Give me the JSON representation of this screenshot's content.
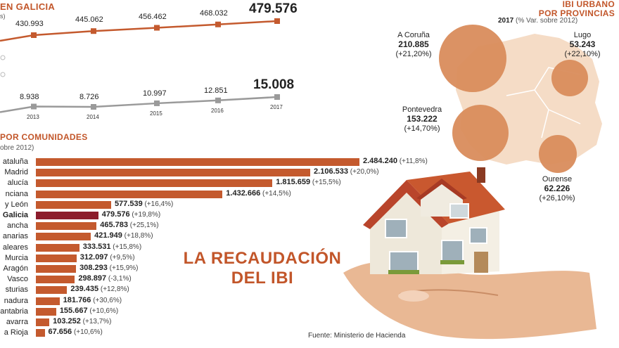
{
  "galicia_header": "EN GALICIA",
  "galicia_sub": "s)",
  "line_chart": {
    "years": [
      "2013",
      "2014",
      "2015",
      "2016",
      "2017"
    ],
    "upper": {
      "labels": [
        "430.993",
        "445.062",
        "456.462",
        "468.032",
        "479.576"
      ],
      "values": [
        430993,
        445062,
        456462,
        468032,
        479576
      ]
    },
    "lower": {
      "labels": [
        "8.938",
        "8.726",
        "10.997",
        "12.851",
        "15.008"
      ],
      "values": [
        8938,
        8726,
        10997,
        12851,
        15008
      ]
    },
    "upper_color": "#c45a2e",
    "lower_color": "#9a9a9a"
  },
  "communities_header": "POR COMUNIDADES",
  "communities_sub": "obre 2012)",
  "chart_data": {
    "type": "bar",
    "categories": [
      "ataluña",
      "Madrid",
      "alucía",
      "nciana",
      "y León",
      "Galicia",
      "ancha",
      "anarias",
      "aleares",
      "Murcia",
      "Aragón",
      "Vasco",
      "sturias",
      "nadura",
      "antabria",
      "avarra",
      "a Rioja"
    ],
    "values": [
      2484240,
      2106533,
      1815659,
      1432666,
      577539,
      479576,
      465783,
      421949,
      333531,
      312097,
      308293,
      298897,
      239435,
      181766,
      155667,
      103252,
      67656
    ],
    "value_labels": [
      "2.484.240",
      "2.106.533",
      "1.815.659",
      "1.432.666",
      "577.539",
      "479.576",
      "465.783",
      "421.949",
      "333.531",
      "312.097",
      "308.293",
      "298.897",
      "239.435",
      "181.766",
      "155.667",
      "103.252",
      "67.656"
    ],
    "pct_labels": [
      "(+11,8%)",
      "(+20,0%)",
      "(+15,5%)",
      "(+14,5%)",
      "(+16,4%)",
      "(+19,8%)",
      "(+25,1%)",
      "(+18,8%)",
      "(+15,8%)",
      "(+9,5%)",
      "(+15,9%)",
      "(-3,1%)",
      "(+12,8%)",
      "(+30,6%)",
      "(+10,6%)",
      "(+13,7%)",
      "(+10,6%)"
    ],
    "bar_color": "#c45a2e",
    "highlight_color": "#8c1c2c",
    "highlight_index": 5
  },
  "title": {
    "line1": "LA RECAUDACIÓN",
    "line2": "DEL IBI"
  },
  "provinces": {
    "header1": "IBI URBANO",
    "header2": "POR PROVINCIAS",
    "year": "2017",
    "year_sub": "(% Var. sobre 2012)",
    "items": [
      {
        "name": "A Coruña",
        "value": "210.885",
        "pct": "(+21,20%)"
      },
      {
        "name": "Lugo",
        "value": "53.243",
        "pct": "(+22,10%)"
      },
      {
        "name": "Pontevedra",
        "value": "153.222",
        "pct": "(+14,70%)"
      },
      {
        "name": "Ourense",
        "value": "62.226",
        "pct": "(+26,10%)"
      }
    ],
    "circle_color": "#d98c5c",
    "map_color": "#f5dcc6"
  },
  "source": "Fuente: Ministerio de Hacienda"
}
